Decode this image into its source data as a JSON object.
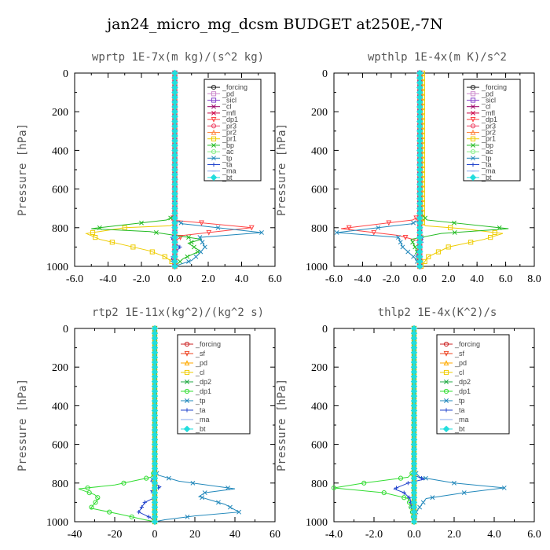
{
  "title": "jan24_micro_mg_dcsm  BUDGET at250E,-7N",
  "chart_data": [
    {
      "type": "line",
      "title": "wprtp  1E-7x(m kg)/(s^2 kg)",
      "ylabel": "Pressure [hPa]",
      "xlim": [
        -6,
        6
      ],
      "xticks": [
        -6,
        -4,
        -2,
        0,
        2,
        4,
        6
      ],
      "xtick_labels": [
        "-6.0",
        "-4.0",
        "-2.0",
        "0.0",
        "2.0",
        "4.0",
        "6.0"
      ],
      "ylim": [
        0,
        1000
      ],
      "yticks": [
        0,
        200,
        400,
        600,
        800,
        1000
      ],
      "legend_position": "top-right",
      "series": [
        {
          "name": "_forcing",
          "color": "#222222",
          "marker": "o",
          "x": [
            0,
            0
          ],
          "y": [
            0,
            1000
          ]
        },
        {
          "name": "_pd",
          "color": "#cc88cc",
          "marker": "s",
          "x": [
            0,
            0
          ],
          "y": [
            0,
            1000
          ]
        },
        {
          "name": "_sicl",
          "color": "#8844cc",
          "marker": "s",
          "x": [
            0,
            0
          ],
          "y": [
            0,
            1000
          ]
        },
        {
          "name": "_cl",
          "color": "#990066",
          "marker": "x",
          "x": [
            0,
            0
          ],
          "y": [
            0,
            1000
          ]
        },
        {
          "name": "_mfl",
          "color": "#cc0044",
          "marker": "x",
          "x": [
            0,
            0
          ],
          "y": [
            0,
            1000
          ]
        },
        {
          "name": "_dp1",
          "color": "#ff4444",
          "marker": "v",
          "x": [
            0,
            0,
            -0.2,
            4.6,
            0.5,
            0,
            0
          ],
          "y": [
            0,
            740,
            760,
            800,
            840,
            870,
            1000
          ]
        },
        {
          "name": "_pr3",
          "color": "#ee4466",
          "marker": "o",
          "x": [
            0,
            0
          ],
          "y": [
            0,
            1000
          ]
        },
        {
          "name": "_pr2",
          "color": "#ff8844",
          "marker": "^",
          "x": [
            0,
            0
          ],
          "y": [
            0,
            1000
          ]
        },
        {
          "name": "_pr1",
          "color": "#eecc00",
          "marker": "s",
          "x": [
            0,
            0,
            -0.3,
            -3,
            -5.3,
            -4.5,
            -3,
            -1.5,
            -0.6,
            -0.1,
            0
          ],
          "y": [
            0,
            780,
            790,
            800,
            830,
            860,
            890,
            920,
            950,
            980,
            1000
          ]
        },
        {
          "name": "_bp",
          "color": "#22bb22",
          "marker": "x",
          "x": [
            0,
            0,
            -0.5,
            -5,
            -1.5,
            1.6,
            0.8,
            1.5,
            0.5,
            0
          ],
          "y": [
            0,
            740,
            760,
            805,
            820,
            860,
            880,
            920,
            960,
            1000
          ]
        },
        {
          "name": "_ac",
          "color": "#88ee88",
          "marker": "o",
          "x": [
            0,
            0
          ],
          "y": [
            0,
            1000
          ]
        },
        {
          "name": "_tp",
          "color": "#2288bb",
          "marker": "x",
          "x": [
            0,
            0,
            0.5,
            5.2,
            1.5,
            1.8,
            1.4,
            1,
            0.3,
            0
          ],
          "y": [
            0,
            760,
            780,
            825,
            850,
            900,
            940,
            970,
            990,
            1000
          ]
        },
        {
          "name": "_ta",
          "color": "#2244cc",
          "marker": "+",
          "x": [
            0,
            0,
            -0.2,
            0.3,
            -0.2,
            0
          ],
          "y": [
            0,
            820,
            860,
            900,
            960,
            1000
          ]
        },
        {
          "name": "_ma",
          "color": "#88aaee",
          "marker": "-",
          "x": [
            0,
            0
          ],
          "y": [
            0,
            1000
          ]
        },
        {
          "name": "_bt",
          "color": "#22dddd",
          "marker": "D",
          "x": [
            0,
            0
          ],
          "y": [
            0,
            1000
          ]
        }
      ]
    },
    {
      "type": "line",
      "title": "wpthlp  1E-4x(m K)/s^2",
      "ylabel": "Pressure [hPa]",
      "xlim": [
        -6,
        8
      ],
      "xticks": [
        -6,
        -4,
        -2,
        0,
        2,
        4,
        6,
        8
      ],
      "xtick_labels": [
        "-6.0",
        "-4.0",
        "-2.0",
        "0.0",
        "2.0",
        "4.0",
        "6.0",
        "8.0"
      ],
      "ylim": [
        0,
        1000
      ],
      "yticks": [
        0,
        200,
        400,
        600,
        800,
        1000
      ],
      "legend_position": "top-right",
      "series": [
        {
          "name": "_forcing",
          "color": "#222222",
          "marker": "o",
          "x": [
            0,
            0
          ],
          "y": [
            0,
            1000
          ]
        },
        {
          "name": "_pd",
          "color": "#cc88cc",
          "marker": "s",
          "x": [
            0,
            0
          ],
          "y": [
            0,
            1000
          ]
        },
        {
          "name": "_sicl",
          "color": "#8844cc",
          "marker": "s",
          "x": [
            0,
            0
          ],
          "y": [
            0,
            1000
          ]
        },
        {
          "name": "_cl",
          "color": "#990066",
          "marker": "x",
          "x": [
            0,
            0
          ],
          "y": [
            0,
            1000
          ]
        },
        {
          "name": "_mfl",
          "color": "#cc0044",
          "marker": "x",
          "x": [
            0,
            0
          ],
          "y": [
            0,
            1000
          ]
        },
        {
          "name": "_dp1",
          "color": "#ff4444",
          "marker": "v",
          "x": [
            0,
            0,
            -0.5,
            -5.5,
            -1.5,
            0,
            0
          ],
          "y": [
            0,
            740,
            760,
            805,
            840,
            870,
            1000
          ]
        },
        {
          "name": "_pr3",
          "color": "#ee4466",
          "marker": "o",
          "x": [
            0,
            0
          ],
          "y": [
            0,
            1000
          ]
        },
        {
          "name": "_pr2",
          "color": "#ff8844",
          "marker": "^",
          "x": [
            0,
            0
          ],
          "y": [
            0,
            1000
          ]
        },
        {
          "name": "_pr1",
          "color": "#eecc00",
          "marker": "s",
          "x": [
            0.2,
            0.2,
            0.4,
            3,
            5.8,
            4.5,
            2,
            0.6,
            0.1
          ],
          "y": [
            0,
            780,
            790,
            805,
            830,
            860,
            900,
            950,
            1000
          ]
        },
        {
          "name": "_bp",
          "color": "#22bb22",
          "marker": "x",
          "x": [
            0,
            0,
            0.5,
            6.2,
            1.5,
            -0.6,
            -0.2,
            0
          ],
          "y": [
            0,
            720,
            760,
            805,
            830,
            860,
            920,
            1000
          ]
        },
        {
          "name": "_ac",
          "color": "#88ee88",
          "marker": "o",
          "x": [
            0,
            0
          ],
          "y": [
            0,
            1000
          ]
        },
        {
          "name": "_tp",
          "color": "#2288bb",
          "marker": "x",
          "x": [
            0,
            0,
            -0.6,
            -5.8,
            -1.5,
            -1.2,
            -0.3,
            0
          ],
          "y": [
            0,
            760,
            780,
            825,
            850,
            900,
            960,
            1000
          ]
        },
        {
          "name": "_ta",
          "color": "#2244cc",
          "marker": "+",
          "x": [
            0,
            0,
            0.2,
            -0.2,
            0
          ],
          "y": [
            0,
            820,
            860,
            940,
            1000
          ]
        },
        {
          "name": "_ma",
          "color": "#88aaee",
          "marker": "-",
          "x": [
            0,
            0
          ],
          "y": [
            0,
            1000
          ]
        },
        {
          "name": "_bt",
          "color": "#22dddd",
          "marker": "D",
          "x": [
            0,
            0
          ],
          "y": [
            0,
            1000
          ]
        }
      ]
    },
    {
      "type": "line",
      "title": "rtp2  1E-11x(kg^2)/(kg^2 s)",
      "ylabel": "Pressure [hPa]",
      "xlim": [
        -40,
        60
      ],
      "xticks": [
        -40,
        -20,
        0,
        20,
        40,
        60
      ],
      "xtick_labels": [
        "-40",
        "-20",
        "0",
        "20",
        "40",
        "60"
      ],
      "ylim": [
        0,
        1000
      ],
      "yticks": [
        0,
        200,
        400,
        600,
        800,
        1000
      ],
      "legend_position": "top-right",
      "series": [
        {
          "name": "_forcing",
          "color": "#cc2222",
          "marker": "o",
          "x": [
            0,
            0
          ],
          "y": [
            0,
            1000
          ]
        },
        {
          "name": "_sf",
          "color": "#ee4422",
          "marker": "v",
          "x": [
            0,
            0
          ],
          "y": [
            0,
            1000
          ]
        },
        {
          "name": "_pd",
          "color": "#ffaa00",
          "marker": "^",
          "x": [
            0,
            0
          ],
          "y": [
            0,
            1000
          ]
        },
        {
          "name": "_cl",
          "color": "#eecc00",
          "marker": "s",
          "x": [
            0,
            0
          ],
          "y": [
            0,
            1000
          ]
        },
        {
          "name": "_dp2",
          "color": "#22aa44",
          "marker": "x",
          "x": [
            0,
            0
          ],
          "y": [
            0,
            1000
          ]
        },
        {
          "name": "_dp1",
          "color": "#33dd33",
          "marker": "o",
          "x": [
            0,
            0,
            -2,
            -20,
            -38,
            -30,
            -28,
            -32,
            -18,
            -5,
            0
          ],
          "y": [
            0,
            740,
            770,
            810,
            830,
            860,
            880,
            930,
            960,
            990,
            1000
          ]
        },
        {
          "name": "_tp",
          "color": "#2288bb",
          "marker": "x",
          "x": [
            0,
            0,
            2,
            12,
            40,
            25,
            22,
            35,
            42,
            20,
            5,
            0
          ],
          "y": [
            0,
            740,
            760,
            790,
            830,
            850,
            870,
            910,
            950,
            970,
            990,
            1000
          ]
        },
        {
          "name": "_ta",
          "color": "#2244cc",
          "marker": "+",
          "x": [
            0,
            0,
            -2,
            3,
            -2,
            1,
            -5,
            -8,
            -2,
            0
          ],
          "y": [
            0,
            760,
            790,
            820,
            840,
            870,
            900,
            950,
            980,
            1000
          ]
        },
        {
          "name": "_ma",
          "color": "#88aaee",
          "marker": "-",
          "x": [
            0,
            0
          ],
          "y": [
            0,
            1000
          ]
        },
        {
          "name": "_bt",
          "color": "#22dddd",
          "marker": "D",
          "x": [
            0,
            0
          ],
          "y": [
            0,
            1000
          ]
        }
      ]
    },
    {
      "type": "line",
      "title": "thlp2  1E-4x(K^2)/s",
      "ylabel": "Pressure [hPa]",
      "xlim": [
        -4,
        6
      ],
      "xticks": [
        -4,
        -2,
        0,
        2,
        4,
        6
      ],
      "xtick_labels": [
        "-4.0",
        "-2.0",
        "0.0",
        "2.0",
        "4.0",
        "6.0"
      ],
      "ylim": [
        0,
        1000
      ],
      "yticks": [
        0,
        200,
        400,
        600,
        800,
        1000
      ],
      "legend_position": "top-right",
      "series": [
        {
          "name": "_forcing",
          "color": "#cc2222",
          "marker": "o",
          "x": [
            0,
            0
          ],
          "y": [
            0,
            1000
          ]
        },
        {
          "name": "_sf",
          "color": "#ee4422",
          "marker": "v",
          "x": [
            0,
            0
          ],
          "y": [
            0,
            1000
          ]
        },
        {
          "name": "_pd",
          "color": "#ffaa00",
          "marker": "^",
          "x": [
            0,
            0
          ],
          "y": [
            0,
            1000
          ]
        },
        {
          "name": "_cl",
          "color": "#eecc00",
          "marker": "s",
          "x": [
            0,
            0
          ],
          "y": [
            0,
            1000
          ]
        },
        {
          "name": "_dp2",
          "color": "#22aa44",
          "marker": "x",
          "x": [
            0,
            0
          ],
          "y": [
            0,
            1000
          ]
        },
        {
          "name": "_dp1",
          "color": "#33dd33",
          "marker": "o",
          "x": [
            0,
            0,
            -0.3,
            -2.5,
            -4,
            -1.5,
            -0.3,
            -0.1,
            0
          ],
          "y": [
            0,
            740,
            770,
            800,
            825,
            850,
            880,
            940,
            1000
          ]
        },
        {
          "name": "_tp",
          "color": "#2288bb",
          "marker": "x",
          "x": [
            0,
            0,
            0.3,
            2,
            4.5,
            2.5,
            0.6,
            0.1,
            0
          ],
          "y": [
            0,
            740,
            770,
            800,
            825,
            850,
            880,
            950,
            1000
          ]
        },
        {
          "name": "_ta",
          "color": "#2244cc",
          "marker": "+",
          "x": [
            0,
            0,
            0.5,
            -0.3,
            -1,
            -0.5,
            -0.2,
            0
          ],
          "y": [
            0,
            760,
            780,
            800,
            830,
            850,
            880,
            1000
          ]
        },
        {
          "name": "_ma",
          "color": "#88aaee",
          "marker": "-",
          "x": [
            0,
            0
          ],
          "y": [
            0,
            1000
          ]
        },
        {
          "name": "_bt",
          "color": "#22dddd",
          "marker": "D",
          "x": [
            0,
            0
          ],
          "y": [
            0,
            1000
          ]
        }
      ]
    }
  ]
}
